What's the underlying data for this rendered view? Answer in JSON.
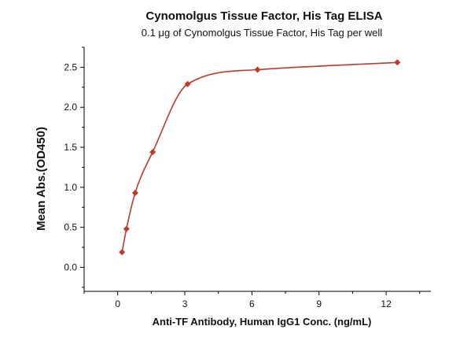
{
  "chart_data": {
    "type": "scatter",
    "title": "Cynomolgus Tissue Factor, His Tag ELISA",
    "subtitle": "0.1 μg of Cynomolgus Tissue Factor, His Tag per well",
    "xlabel": "Anti-TF Antibody, Human IgG1 Conc. (ng/mL)",
    "ylabel": "Mean Abs.(OD450)",
    "xlim": [
      -1.5,
      14
    ],
    "ylim": [
      -0.3,
      2.75
    ],
    "xticks": [
      0,
      3,
      6,
      9,
      12
    ],
    "xtick_labels": [
      "0",
      "3",
      "6",
      "9",
      "12"
    ],
    "yticks": [
      0.0,
      0.5,
      1.0,
      1.5,
      2.0,
      2.5
    ],
    "ytick_labels": [
      "0.0",
      "0.5",
      "1.0",
      "1.5",
      "2.0",
      "2.5"
    ],
    "grid": false,
    "legend": "none",
    "colors": {
      "series": "#c0392b",
      "axis": "#000000"
    },
    "series": [
      {
        "marker": "diamond",
        "fit": "sigmoidal-curve",
        "x": [
          0.195,
          0.391,
          0.781,
          1.563,
          3.125,
          6.25,
          12.5
        ],
        "y": [
          0.19,
          0.48,
          0.93,
          1.44,
          2.29,
          2.47,
          2.56
        ]
      }
    ]
  }
}
